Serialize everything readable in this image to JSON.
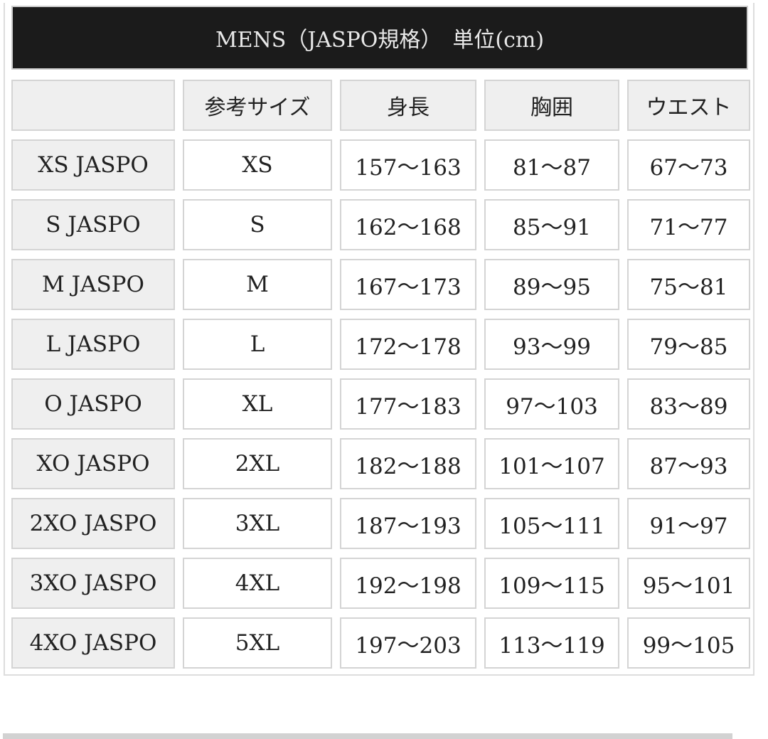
{
  "title": "MENS（JASPO規格）　単位(cm)",
  "table": {
    "headers": [
      "",
      "参考サイズ",
      "身長",
      "胸囲",
      "ウエスト"
    ],
    "rows": [
      [
        "XS JASPO",
        "XS",
        "157～163",
        "81～87",
        "67～73"
      ],
      [
        "S JASPO",
        "S",
        "162～168",
        "85～91",
        "71～77"
      ],
      [
        "M JASPO",
        "M",
        "167～173",
        "89～95",
        "75～81"
      ],
      [
        "L JASPO",
        "L",
        "172～178",
        "93～99",
        "79～85"
      ],
      [
        "O JASPO",
        "XL",
        "177～183",
        "97～103",
        "83～89"
      ],
      [
        "XO JASPO",
        "2XL",
        "182～188",
        "101～107",
        "87～93"
      ],
      [
        "2XO JASPO",
        "3XL",
        "187～193",
        "105～111",
        "91～97"
      ],
      [
        "3XO JASPO",
        "4XL",
        "192～198",
        "109～115",
        "95～101"
      ],
      [
        "4XO JASPO",
        "5XL",
        "197～203",
        "113～119",
        "99～105"
      ]
    ]
  }
}
